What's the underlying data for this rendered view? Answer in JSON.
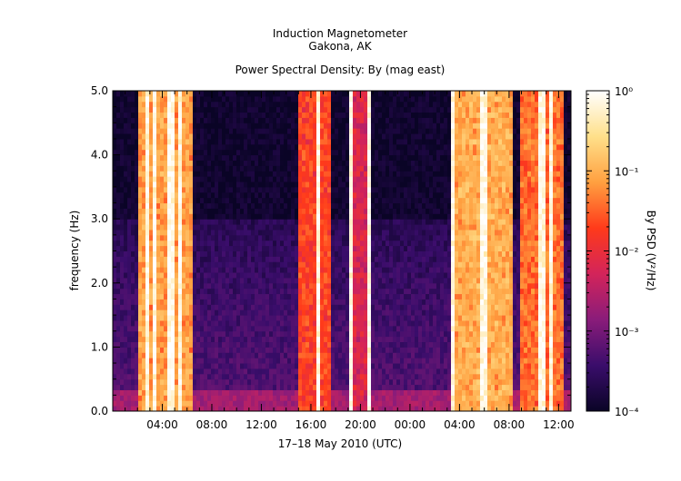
{
  "chart_data": {
    "type": "heatmap",
    "title_lines": [
      "Induction Magnetometer",
      "Gakona, AK"
    ],
    "subtitle": "Power Spectral Density: By (mag east)",
    "xlabel": "17–18 May 2010 (UTC)",
    "ylabel": "frequency (Hz)",
    "x_tick_labels": [
      "04:00",
      "08:00",
      "12:00",
      "16:00",
      "20:00",
      "00:00",
      "04:00",
      "08:00",
      "12:00"
    ],
    "x_tick_hours": [
      4,
      8,
      12,
      16,
      20,
      24,
      28,
      32,
      36
    ],
    "xlim_hours": [
      0,
      37
    ],
    "ylim": [
      0.0,
      5.0
    ],
    "y_ticks": [
      0.0,
      1.0,
      2.0,
      3.0,
      4.0,
      5.0
    ],
    "y_tick_labels": [
      "0.0",
      "1.0",
      "2.0",
      "3.0",
      "4.0",
      "5.0"
    ],
    "colorbar": {
      "label": "By PSD (V²/Hz)",
      "scale": "log",
      "range": [
        0.0001,
        1
      ],
      "tick_labels": [
        "10⁻⁴",
        "10⁻³",
        "10⁻²",
        "10⁻¹",
        "10⁰"
      ],
      "colors": [
        "#0a0426",
        "#3a0d6b",
        "#8a1c7a",
        "#d3245a",
        "#ff3a1a",
        "#ffa040",
        "#ffe08a",
        "#ffffff"
      ]
    },
    "background_level": 0.00012,
    "broadband_bursts": [
      {
        "start_hour": 2.0,
        "end_hour": 6.4,
        "level": 0.12
      },
      {
        "start_hour": 15.1,
        "end_hour": 17.5,
        "level": 0.03
      },
      {
        "start_hour": 19.0,
        "end_hour": 20.8,
        "level": 0.01
      },
      {
        "start_hour": 27.3,
        "end_hour": 32.3,
        "level": 0.15
      },
      {
        "start_hour": 33.0,
        "end_hour": 36.4,
        "level": 0.06
      }
    ],
    "low_frequency_band": {
      "max_freq": 3.0,
      "level": 0.0006
    }
  }
}
